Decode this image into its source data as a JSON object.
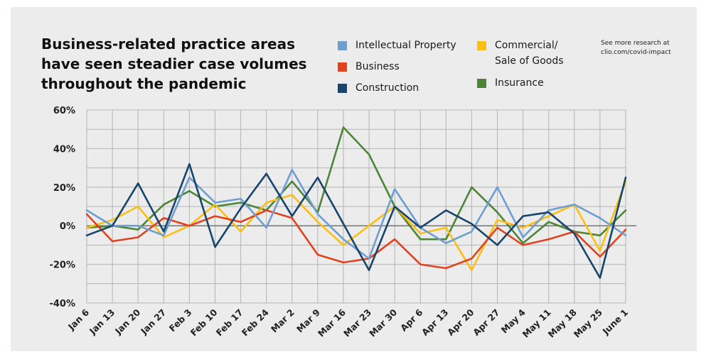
{
  "title": "Business-related practice areas have seen steadier case volumes throughout the pandemic",
  "note": "See more research at\nclio.com/covid-impact",
  "legend": [
    {
      "label": "Intellectual Property",
      "color": "#6e9fd1"
    },
    {
      "label": "Business",
      "color": "#e2431e"
    },
    {
      "label": "Construction",
      "color": "#18456b"
    },
    {
      "label": "Commercial/\nSale of Goods",
      "color": "#fbbf14"
    },
    {
      "label": "Insurance",
      "color": "#4d8538"
    }
  ],
  "chart_data": {
    "type": "line",
    "title": "Business-related practice areas have seen steadier case volumes throughout the pandemic",
    "xlabel": "",
    "ylabel": "",
    "x": [
      "Jan 6",
      "Jan 13",
      "Jan 20",
      "Jan 27",
      "Feb 3",
      "Feb 10",
      "Feb 17",
      "Feb 24",
      "Mar 2",
      "Mar 9",
      "Mar 16",
      "Mar 23",
      "Mar 30",
      "Apr 6",
      "Apr 13",
      "Apr 20",
      "Apr 27",
      "May 4",
      "May 11",
      "May 18",
      "May 25",
      "June 1"
    ],
    "ylim": [
      -40,
      60
    ],
    "yticks": [
      -40,
      -20,
      0,
      20,
      40,
      60
    ],
    "ytick_labels": [
      "-40%",
      "-20%",
      "0%",
      "20%",
      "40%",
      "60%"
    ],
    "grid": true,
    "legend_position": "top-right",
    "series": [
      {
        "name": "Insurance",
        "color": "#4d8538",
        "values": [
          -1,
          0,
          -2,
          11,
          18,
          10,
          12,
          8,
          23,
          7,
          51,
          37,
          10,
          -7,
          -7,
          20,
          7,
          -9,
          2,
          -3,
          -5,
          8
        ]
      },
      {
        "name": "Commercial/\nSale of Goods",
        "color": "#fbbf14",
        "values": [
          -1,
          3,
          10,
          -6,
          0,
          11,
          -3,
          12,
          16,
          2,
          -10,
          0,
          10,
          -4,
          -1,
          -23,
          3,
          -1,
          5,
          11,
          -13,
          23
        ]
      },
      {
        "name": "Business",
        "color": "#e2431e",
        "values": [
          6,
          -8,
          -6,
          4,
          0,
          5,
          2,
          8,
          4,
          -15,
          -19,
          -17,
          -7,
          -20,
          -22,
          -17,
          -1,
          -10,
          -7,
          -3,
          -16,
          -2
        ]
      },
      {
        "name": "Intellectual Property",
        "color": "#6e9fd1",
        "values": [
          8,
          0,
          0,
          -5,
          25,
          12,
          14,
          -1,
          29,
          6,
          -7,
          -17,
          19,
          -1,
          -9,
          -3,
          20,
          -6,
          8,
          11,
          4,
          -5
        ]
      },
      {
        "name": "Construction",
        "color": "#18456b",
        "values": [
          -5,
          0,
          22,
          -3,
          32,
          -11,
          9,
          27,
          5,
          25,
          1,
          -23,
          10,
          -1,
          8,
          1,
          -10,
          5,
          7,
          -4,
          -27,
          25
        ]
      }
    ]
  }
}
